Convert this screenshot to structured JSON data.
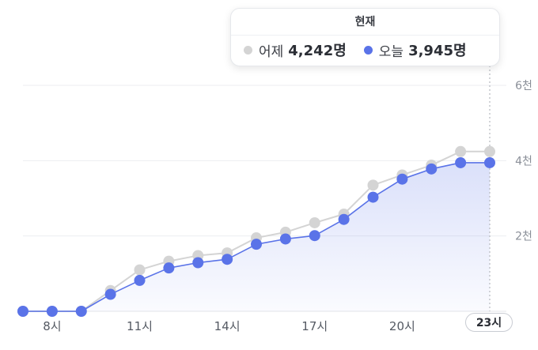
{
  "tooltip": {
    "title": "현재",
    "items": [
      {
        "name": "어제",
        "value": "4,242명",
        "color": "#d4d4d4"
      },
      {
        "name": "오늘",
        "value": "3,945명",
        "color": "#5a73e8"
      }
    ]
  },
  "current_hour_label": "23시",
  "chart_data": {
    "type": "line",
    "x": [
      7,
      8,
      9,
      10,
      11,
      12,
      13,
      14,
      15,
      16,
      17,
      18,
      19,
      20,
      21,
      22,
      23
    ],
    "x_tick_labels": [
      {
        "x": 8,
        "label": "8시"
      },
      {
        "x": 11,
        "label": "11시"
      },
      {
        "x": 14,
        "label": "14시"
      },
      {
        "x": 17,
        "label": "17시"
      },
      {
        "x": 20,
        "label": "20시"
      }
    ],
    "y_tick_labels": [
      {
        "y": 2000,
        "label": "2천"
      },
      {
        "y": 4000,
        "label": "4천"
      },
      {
        "y": 6000,
        "label": "6천"
      }
    ],
    "ylim": [
      0,
      6000
    ],
    "xlim": [
      7,
      23
    ],
    "grid": true,
    "series": [
      {
        "name": "어제",
        "color": "#d4d4d4",
        "values": [
          0,
          0,
          0,
          550,
          1100,
          1330,
          1480,
          1550,
          1950,
          2100,
          2350,
          2580,
          3350,
          3620,
          3880,
          4242,
          4242
        ]
      },
      {
        "name": "오늘",
        "color": "#5a73e8",
        "values": [
          0,
          0,
          0,
          450,
          820,
          1150,
          1290,
          1380,
          1780,
          1920,
          2010,
          2440,
          3030,
          3510,
          3780,
          3945,
          3945
        ]
      }
    ],
    "area_series": "오늘"
  }
}
